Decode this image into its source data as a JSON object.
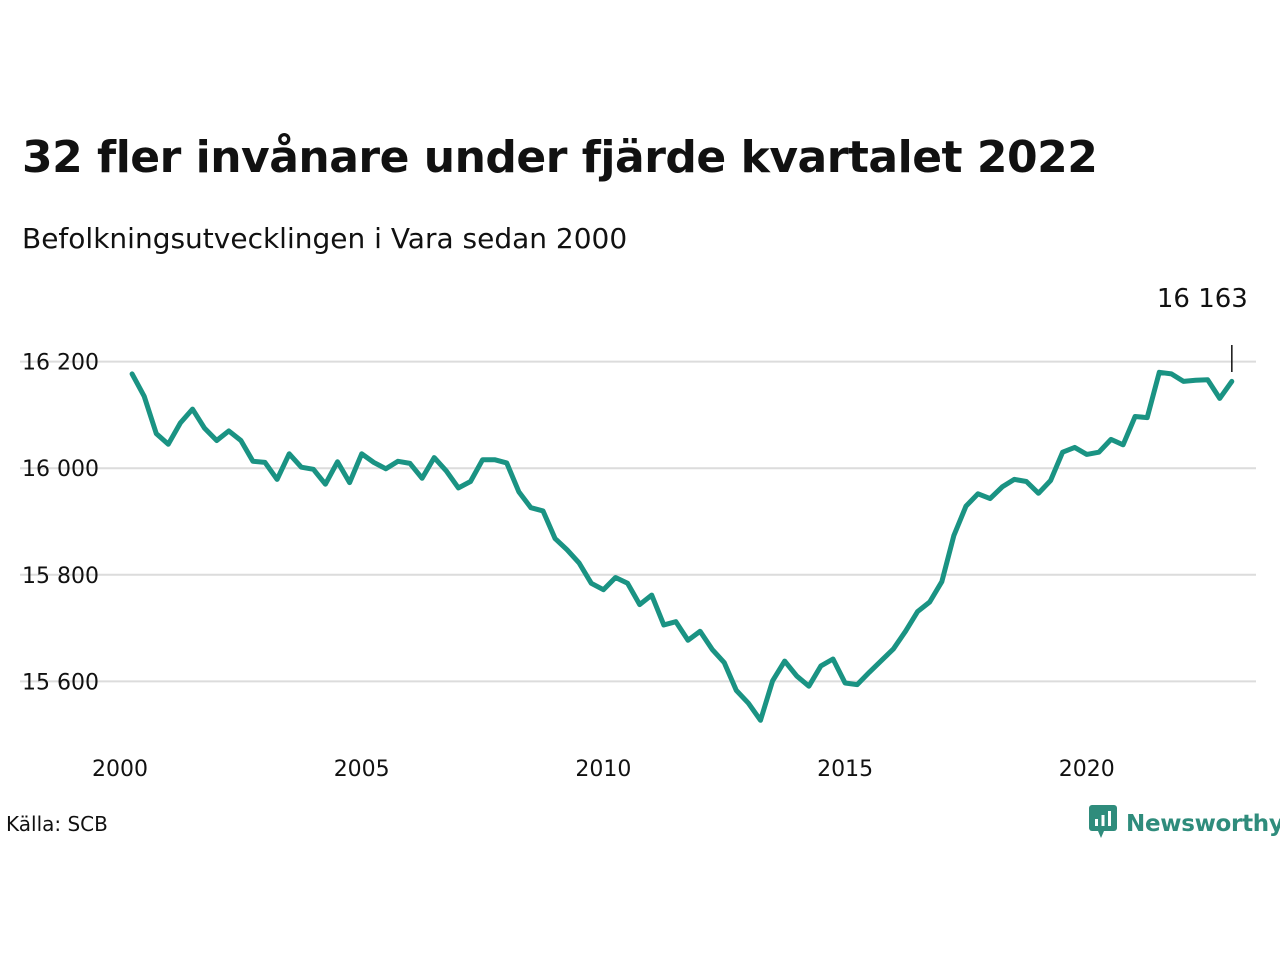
{
  "header": {
    "title": "32 fler invånare under fjärde kvartalet 2022",
    "subtitle": "Befolkningsutvecklingen i Vara sedan 2000"
  },
  "footer": {
    "source": "Källa: SCB",
    "logo_text": "Newsworthy"
  },
  "colors": {
    "line": "#1a9383",
    "grid": "#dcdcdc",
    "text": "#111111",
    "logo": "#2f8c7c"
  },
  "icons": {
    "logo": "chart-bubble-icon"
  },
  "chart_data": {
    "type": "line",
    "title": "32 fler invånare under fjärde kvartalet 2022",
    "subtitle": "Befolkningsutvecklingen i Vara sedan 2000",
    "xlabel": "",
    "ylabel": "",
    "xlim": [
      2000,
      2023.5
    ],
    "ylim": [
      15490,
      16250
    ],
    "x_ticks": [
      2000,
      2005,
      2010,
      2015,
      2020
    ],
    "x_tick_labels": [
      "2000",
      "2005",
      "2010",
      "2015",
      "2020"
    ],
    "y_ticks": [
      15600,
      15800,
      16000,
      16200
    ],
    "y_tick_labels": [
      "15 600",
      "15 800",
      "16 000",
      "16 200"
    ],
    "grid": "horizontal",
    "last_value_label": "16 163",
    "series": [
      {
        "x": [
          2000.25,
          2000.5,
          2000.75,
          2001.0,
          2001.25,
          2001.5,
          2001.75,
          2002.0,
          2002.25,
          2002.5,
          2002.75,
          2003.0,
          2003.25,
          2003.5,
          2003.75,
          2004.0,
          2004.25,
          2004.5,
          2004.75,
          2005.0,
          2005.25,
          2005.5,
          2005.75,
          2006.0,
          2006.25,
          2006.5,
          2006.75,
          2007.0,
          2007.25,
          2007.5,
          2007.75,
          2008.0,
          2008.25,
          2008.5,
          2008.75,
          2009.0,
          2009.25,
          2009.5,
          2009.75,
          2010.0,
          2010.25,
          2010.5,
          2010.75,
          2011.0,
          2011.25,
          2011.5,
          2011.75,
          2012.0,
          2012.25,
          2012.5,
          2012.75,
          2013.0,
          2013.25,
          2013.5,
          2013.75,
          2014.0,
          2014.25,
          2014.5,
          2014.75,
          2015.0,
          2015.25,
          2015.5,
          2015.75,
          2016.0,
          2016.25,
          2016.5,
          2016.75,
          2017.0,
          2017.25,
          2017.5,
          2017.75,
          2018.0,
          2018.25,
          2018.5,
          2018.75,
          2019.0,
          2019.25,
          2019.5,
          2019.75,
          2020.0,
          2020.25,
          2020.5,
          2020.75,
          2021.0,
          2021.25,
          2021.5,
          2021.75,
          2022.0,
          2022.25,
          2022.5,
          2022.75,
          2023.0
        ],
        "y": [
          16177,
          16135,
          16065,
          16045,
          16085,
          16111,
          16075,
          16052,
          16070,
          16052,
          16013,
          16011,
          15979,
          16027,
          16002,
          15998,
          15970,
          16012,
          15973,
          16027,
          16011,
          15999,
          16013,
          16009,
          15981,
          16020,
          15995,
          15963,
          15975,
          16016,
          16016,
          16010,
          15956,
          15926,
          15920,
          15868,
          15847,
          15822,
          15784,
          15772,
          15795,
          15784,
          15744,
          15762,
          15706,
          15712,
          15677,
          15694,
          15660,
          15635,
          15583,
          15559,
          15527,
          15601,
          15638,
          15610,
          15591,
          15629,
          15642,
          15597,
          15594,
          15617,
          15639,
          15661,
          15694,
          15731,
          15749,
          15787,
          15874,
          15929,
          15952,
          15943,
          15965,
          15979,
          15975,
          15953,
          15977,
          16030,
          16039,
          16026,
          16030,
          16054,
          16044,
          16097,
          16095,
          16180,
          16177,
          16163,
          16165,
          16166,
          16131,
          16163
        ]
      }
    ]
  }
}
